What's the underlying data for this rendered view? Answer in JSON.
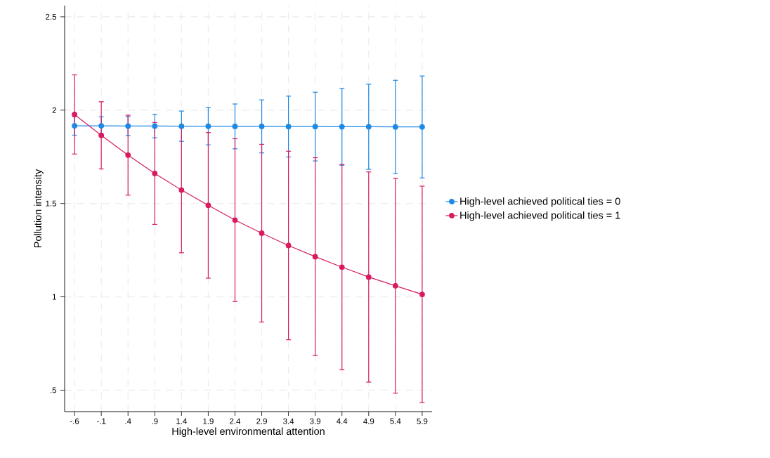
{
  "chart_data": {
    "type": "line",
    "xlabel": "High-level environmental attention",
    "ylabel": "Pollution intensity",
    "x": [
      -0.6,
      -0.1,
      0.4,
      0.9,
      1.4,
      1.9,
      2.4,
      2.9,
      3.4,
      3.9,
      4.4,
      4.9,
      5.4,
      5.9
    ],
    "series": [
      {
        "name": "High-level achieved political ties = 0",
        "color": "#1e88e5",
        "values": [
          1.916,
          1.916,
          1.915,
          1.915,
          1.914,
          1.914,
          1.913,
          1.913,
          1.912,
          1.912,
          1.911,
          1.911,
          1.91,
          1.91
        ],
        "errors": [
          0.05,
          0.048,
          0.051,
          0.063,
          0.081,
          0.1,
          0.12,
          0.142,
          0.163,
          0.184,
          0.206,
          0.228,
          0.25,
          0.273
        ]
      },
      {
        "name": "High-level achieved political ties = 1",
        "color": "#d81b60",
        "values": [
          1.977,
          1.865,
          1.759,
          1.661,
          1.572,
          1.49,
          1.411,
          1.341,
          1.275,
          1.215,
          1.159,
          1.106,
          1.059,
          1.013
        ],
        "errors": [
          0.212,
          0.18,
          0.214,
          0.273,
          0.336,
          0.39,
          0.436,
          0.476,
          0.505,
          0.53,
          0.55,
          0.563,
          0.575,
          0.58
        ]
      }
    ],
    "xlim": [
      -0.785,
      6.085
    ],
    "ylim": [
      0.385,
      2.56
    ],
    "xticks": [
      {
        "value": -0.6,
        "label": "-.6"
      },
      {
        "value": -0.1,
        "label": "-.1"
      },
      {
        "value": 0.4,
        "label": ".4"
      },
      {
        "value": 0.9,
        "label": ".9"
      },
      {
        "value": 1.4,
        "label": "1.4"
      },
      {
        "value": 1.9,
        "label": "1.9"
      },
      {
        "value": 2.4,
        "label": "2.4"
      },
      {
        "value": 2.9,
        "label": "2.9"
      },
      {
        "value": 3.4,
        "label": "3.4"
      },
      {
        "value": 3.9,
        "label": "3.9"
      },
      {
        "value": 4.4,
        "label": "4.4"
      },
      {
        "value": 4.9,
        "label": "4.9"
      },
      {
        "value": 5.4,
        "label": "5.4"
      },
      {
        "value": 5.9,
        "label": "5.9"
      }
    ],
    "yticks": [
      {
        "value": 0.5,
        "label": ".5"
      },
      1,
      1.5,
      2,
      2.5
    ],
    "grid": true,
    "legend": "right",
    "marker": "circle",
    "line_style": "solid"
  }
}
